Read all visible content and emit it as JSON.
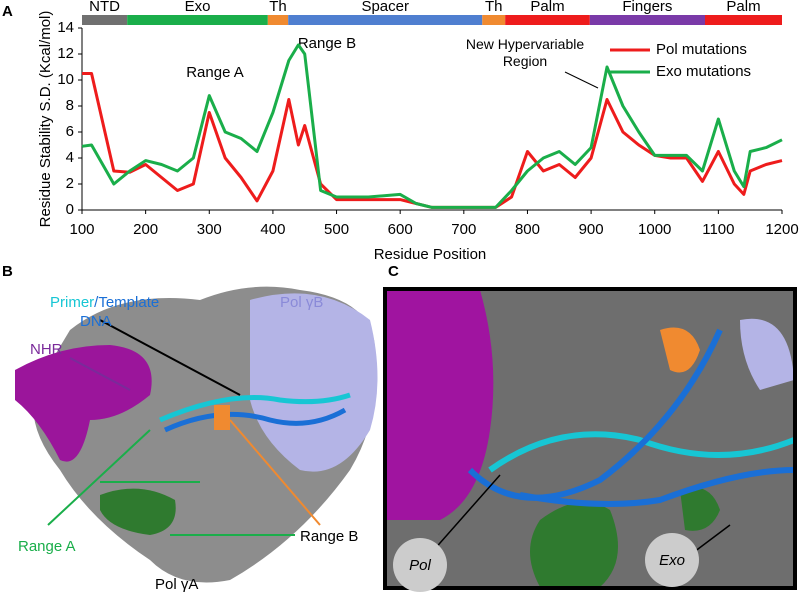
{
  "chart_data": {
    "type": "line",
    "panel_label": "A",
    "x_label": "Residue Position",
    "y_label": "Residue Stability S.D. (Kcal/mol)",
    "xlim": [
      100,
      1200
    ],
    "xticks": [
      100,
      200,
      300,
      400,
      500,
      600,
      700,
      800,
      900,
      1000,
      1100,
      1200
    ],
    "ylim": [
      0,
      14
    ],
    "yticks": [
      0,
      2,
      4,
      6,
      8,
      10,
      12,
      14
    ],
    "legend": "upper right",
    "domains": [
      {
        "name": "NTD",
        "start": 100,
        "end": 171,
        "color": "#707070"
      },
      {
        "name": "Exo",
        "start": 171,
        "end": 392,
        "color": "#1aae4a"
      },
      {
        "name": "Th",
        "start": 392,
        "end": 424,
        "color": "#f08a30"
      },
      {
        "name": "Spacer",
        "start": 424,
        "end": 729,
        "color": "#4f7fd0"
      },
      {
        "name": "Th",
        "start": 729,
        "end": 765,
        "color": "#f08a30"
      },
      {
        "name": "Palm",
        "start": 765,
        "end": 898,
        "color": "#ee1c1c"
      },
      {
        "name": "Fingers",
        "start": 898,
        "end": 1079,
        "color": "#7a3aa8"
      },
      {
        "name": "Palm",
        "start": 1079,
        "end": 1200,
        "color": "#ee1c1c"
      }
    ],
    "annotations": [
      "Range A",
      "Range B",
      "New Hypervariable Region"
    ],
    "x": [
      100,
      115,
      150,
      175,
      200,
      225,
      250,
      275,
      300,
      325,
      350,
      375,
      400,
      425,
      440,
      450,
      475,
      500,
      550,
      600,
      625,
      650,
      700,
      750,
      775,
      800,
      825,
      850,
      875,
      900,
      925,
      950,
      975,
      1000,
      1025,
      1050,
      1075,
      1100,
      1125,
      1140,
      1150,
      1175,
      1200
    ],
    "series": [
      {
        "name": "Pol mutations",
        "color": "#ee1c1c",
        "values": [
          10.5,
          10.5,
          3.0,
          2.9,
          3.5,
          2.5,
          1.5,
          2.0,
          7.5,
          4.0,
          2.5,
          0.7,
          3.0,
          8.5,
          5.0,
          6.5,
          2.0,
          0.8,
          0.8,
          0.8,
          0.5,
          0.2,
          0.2,
          0.2,
          1.0,
          4.5,
          3.0,
          3.5,
          2.5,
          4.0,
          8.5,
          6.0,
          5.0,
          4.2,
          4.0,
          4.0,
          2.2,
          4.5,
          2.0,
          1.2,
          3.0,
          3.5,
          3.8
        ]
      },
      {
        "name": "Exo mutations",
        "color": "#1aae4a",
        "values": [
          4.9,
          5.0,
          2.0,
          3.0,
          3.8,
          3.5,
          3.0,
          4.0,
          8.8,
          6.0,
          5.5,
          4.5,
          7.5,
          11.5,
          12.7,
          12.0,
          1.5,
          1.0,
          1.0,
          1.2,
          0.5,
          0.2,
          0.2,
          0.2,
          1.5,
          3.0,
          4.0,
          4.5,
          3.5,
          4.8,
          11.0,
          8.0,
          6.0,
          4.2,
          4.2,
          4.2,
          3.0,
          7.0,
          3.0,
          1.8,
          4.5,
          4.8,
          5.4
        ]
      }
    ]
  },
  "panel_b": {
    "letter": "B",
    "primer": "Primer",
    "template": "/Template",
    "dna": "DNA",
    "pol_b": "Pol γB",
    "nhr": "NHR",
    "range_a": "Range A",
    "range_b": "Range B",
    "pol_a": "Pol γA"
  },
  "panel_c": {
    "letter": "C",
    "pol": "Pol",
    "exo": "Exo"
  }
}
